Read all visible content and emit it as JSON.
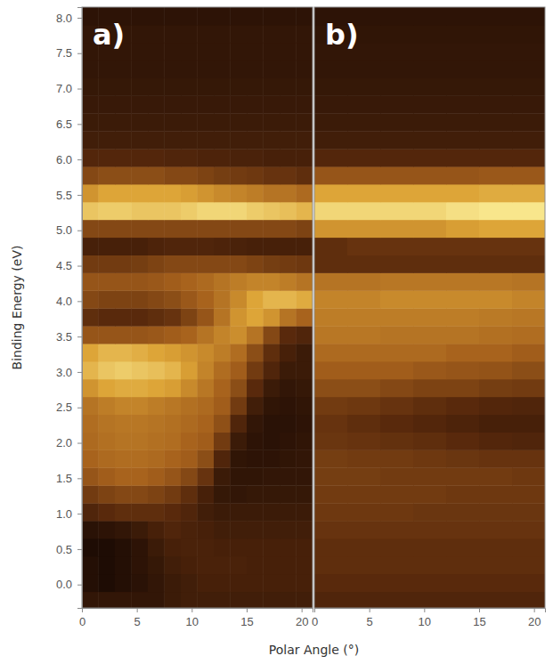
{
  "chart_data": [
    {
      "type": "heatmap",
      "title": "a)",
      "xlabel": "Polar Angle (°)",
      "ylabel": "Binding Energy (eV)",
      "xlim": [
        0,
        21
      ],
      "ylim": [
        -0.33,
        8.15
      ],
      "xticks": [
        0,
        5,
        10,
        15,
        20
      ],
      "yticks": [
        {
          "value": 0,
          "label": "0.0"
        },
        {
          "value": 0.5,
          "label": "0.5"
        },
        {
          "value": 1,
          "label": "1.0"
        },
        {
          "value": 1.5,
          "label": "1.5"
        },
        {
          "value": 2,
          "label": "2.0"
        },
        {
          "value": 2.5,
          "label": "2.5"
        },
        {
          "value": 3,
          "label": "3.0"
        },
        {
          "value": 3.5,
          "label": "3.5"
        },
        {
          "value": 4,
          "label": "4.0"
        },
        {
          "value": 4.5,
          "label": "4.5"
        },
        {
          "value": 5,
          "label": "5.0"
        },
        {
          "value": 5.5,
          "label": "5.5"
        },
        {
          "value": 6,
          "label": "6.0"
        },
        {
          "value": 6.5,
          "label": "6.5"
        },
        {
          "value": 7,
          "label": "7.0"
        },
        {
          "value": 7.5,
          "label": "7.5"
        },
        {
          "value": 8,
          "label": "8.0"
        }
      ],
      "x_edges": [
        0,
        1.5,
        3,
        4.5,
        6,
        7.5,
        9,
        10.5,
        12,
        13.5,
        15,
        16.5,
        18,
        19.5,
        21
      ],
      "y_edges": [
        -0.35,
        -0.1,
        0.15,
        0.4,
        0.65,
        0.9,
        1.15,
        1.4,
        1.65,
        1.9,
        2.15,
        2.4,
        2.65,
        2.9,
        3.15,
        3.4,
        3.65,
        3.9,
        4.15,
        4.4,
        4.65,
        4.9,
        5.15,
        5.4,
        5.65,
        5.9,
        6.15,
        6.4,
        6.65,
        6.9,
        7.15,
        7.4,
        7.65,
        7.9,
        8.15
      ],
      "z": [
        [
          1.5,
          1.5,
          1.5,
          1.5,
          1.5,
          1.8,
          2,
          2,
          2,
          2,
          2,
          2,
          2,
          2
        ],
        [
          1,
          0.8,
          1,
          1.2,
          1.5,
          1.8,
          2,
          2.2,
          2.2,
          2.2,
          2.2,
          2.2,
          2.2,
          2.2
        ],
        [
          1,
          0.8,
          1,
          1.3,
          1.6,
          2,
          2.2,
          2.3,
          2.3,
          2.3,
          2.2,
          2.2,
          2.2,
          2.2
        ],
        [
          0.8,
          0.8,
          1,
          1.3,
          1.8,
          2.2,
          2.3,
          2.3,
          2.2,
          2.2,
          2.2,
          2.2,
          2.2,
          2.2
        ],
        [
          1.2,
          1.3,
          1.5,
          1.8,
          2.2,
          2.5,
          2.3,
          2.2,
          2,
          2,
          2,
          2,
          2,
          2
        ],
        [
          2.5,
          2.8,
          3,
          3,
          3,
          2.8,
          2.5,
          2,
          1.8,
          1.8,
          1.8,
          1.8,
          1.8,
          1.8
        ],
        [
          3.5,
          3.8,
          4,
          4,
          3.8,
          3.5,
          3,
          2.2,
          1.6,
          1.5,
          1.6,
          1.6,
          1.6,
          1.6
        ],
        [
          4.5,
          4.8,
          5,
          5,
          4.8,
          4.5,
          4,
          3.2,
          1.8,
          1.4,
          1.4,
          1.5,
          1.5,
          1.5
        ],
        [
          5,
          5.2,
          5.3,
          5.3,
          5.2,
          5,
          4.8,
          4.2,
          2.5,
          1.4,
          1.3,
          1.3,
          1.4,
          1.5
        ],
        [
          5.2,
          5.4,
          5.5,
          5.5,
          5.4,
          5.3,
          5,
          4.8,
          3.5,
          1.8,
          1.3,
          1.2,
          1.3,
          1.4
        ],
        [
          5.3,
          5.5,
          5.6,
          5.6,
          5.5,
          5.4,
          5.2,
          5,
          4.3,
          2.5,
          1.5,
          1.2,
          1.2,
          1.3
        ],
        [
          5.5,
          5.8,
          6,
          6,
          5.8,
          5.6,
          5.4,
          5.2,
          4.8,
          3.5,
          2,
          1.4,
          1.3,
          1.4
        ],
        [
          6.5,
          7,
          7.2,
          7.2,
          7,
          6.8,
          6.2,
          5.6,
          5,
          4.2,
          2.8,
          1.8,
          1.5,
          1.6
        ],
        [
          7.5,
          8,
          8.2,
          8,
          7.8,
          7.5,
          6.8,
          6,
          5.3,
          4.8,
          3.5,
          2.5,
          1.8,
          1.8
        ],
        [
          7,
          7.5,
          7.5,
          7.3,
          7,
          6.8,
          6.5,
          6.2,
          5.8,
          5.3,
          4.2,
          3,
          2.2,
          1.8
        ],
        [
          4.5,
          4.5,
          4.5,
          4.5,
          4.6,
          4.8,
          5,
          5.5,
          6,
          6.3,
          5.5,
          4,
          2.8,
          2.5
        ],
        [
          3,
          2.8,
          2.8,
          2.8,
          3,
          3.2,
          3.8,
          4.5,
          5.5,
          6.5,
          7,
          6.5,
          5.5,
          5
        ],
        [
          4,
          3.8,
          3.8,
          3.8,
          4,
          4.2,
          4.6,
          5,
          5.5,
          6.2,
          7,
          7.5,
          7.5,
          7.2
        ],
        [
          4.5,
          4.5,
          4.5,
          4.5,
          4.6,
          4.8,
          5,
          5.2,
          5.5,
          5.8,
          6,
          6,
          5.8,
          5.5
        ],
        [
          3.5,
          3.5,
          3.5,
          3.6,
          3.8,
          4,
          4,
          4,
          4,
          4,
          3.8,
          3.6,
          3.5,
          3.4
        ],
        [
          2.2,
          2.2,
          2.2,
          2.2,
          2.4,
          2.5,
          2.5,
          2.5,
          2.4,
          2.3,
          2.2,
          2.2,
          2.2,
          2.2
        ],
        [
          4,
          4,
          4,
          4,
          4,
          4,
          4,
          4,
          4,
          4,
          4,
          4,
          4,
          3.8
        ],
        [
          8,
          8.2,
          8.2,
          8,
          8,
          8,
          8.2,
          8.5,
          8.5,
          8.5,
          8.2,
          8,
          7.8,
          7.5
        ],
        [
          6.5,
          7,
          7,
          7,
          7,
          7,
          6.8,
          6.5,
          6.2,
          6,
          5.8,
          5.5,
          5.5,
          5.2
        ],
        [
          4,
          4.2,
          4.2,
          4.2,
          4.2,
          4,
          4,
          3.8,
          3.6,
          3.5,
          3.4,
          3.2,
          3.2,
          3
        ],
        [
          2.6,
          2.6,
          2.6,
          2.6,
          2.6,
          2.5,
          2.5,
          2.4,
          2.4,
          2.3,
          2.3,
          2.2,
          2.2,
          2.2
        ],
        [
          2,
          2,
          2,
          2,
          2,
          2,
          2,
          2,
          2,
          2,
          2,
          2,
          2,
          2
        ],
        [
          1.8,
          1.8,
          1.8,
          1.8,
          1.8,
          1.8,
          1.8,
          1.8,
          1.8,
          1.8,
          1.8,
          1.8,
          1.8,
          1.8
        ],
        [
          1.7,
          1.7,
          1.7,
          1.7,
          1.7,
          1.7,
          1.7,
          1.7,
          1.7,
          1.7,
          1.7,
          1.7,
          1.7,
          1.7
        ],
        [
          1.6,
          1.6,
          1.6,
          1.6,
          1.6,
          1.6,
          1.6,
          1.6,
          1.6,
          1.6,
          1.6,
          1.6,
          1.6,
          1.6
        ],
        [
          1.5,
          1.5,
          1.5,
          1.5,
          1.5,
          1.5,
          1.5,
          1.5,
          1.5,
          1.5,
          1.5,
          1.5,
          1.5,
          1.5
        ],
        [
          1.5,
          1.5,
          1.5,
          1.5,
          1.5,
          1.5,
          1.5,
          1.5,
          1.5,
          1.5,
          1.5,
          1.5,
          1.5,
          1.5
        ],
        [
          1.5,
          1.5,
          1.5,
          1.5,
          1.5,
          1.5,
          1.5,
          1.5,
          1.5,
          1.5,
          1.5,
          1.5,
          1.5,
          1.5
        ],
        [
          1.3,
          1.3,
          1.3,
          1.3,
          1.3,
          1.3,
          1.3,
          1.3,
          1.3,
          1.3,
          1.3,
          1.3,
          1.3,
          1.3
        ]
      ]
    },
    {
      "type": "heatmap",
      "title": "b)",
      "tick_labels": "x",
      "xlim": [
        0,
        21
      ],
      "ylim": [
        -0.33,
        8.15
      ],
      "xticks": [
        0,
        5,
        10,
        15,
        20
      ],
      "x_edges": [
        0,
        3,
        6,
        9,
        12,
        15,
        18,
        21
      ],
      "y_edges": [
        -0.35,
        -0.1,
        0.15,
        0.4,
        0.65,
        0.9,
        1.15,
        1.4,
        1.65,
        1.9,
        2.15,
        2.4,
        2.65,
        2.9,
        3.15,
        3.4,
        3.65,
        3.9,
        4.15,
        4.4,
        4.65,
        4.9,
        5.15,
        5.4,
        5.65,
        5.9,
        6.15,
        6.4,
        6.65,
        6.9,
        7.15,
        7.4,
        7.65,
        7.9,
        8.15
      ],
      "z": [
        [
          2.5,
          2.5,
          2.5,
          2.5,
          2.5,
          2.5,
          2.5
        ],
        [
          2.8,
          2.8,
          2.8,
          2.8,
          2.8,
          2.8,
          2.8
        ],
        [
          3,
          3,
          3,
          3,
          3,
          3,
          3
        ],
        [
          3,
          3,
          3,
          3,
          3,
          3,
          3
        ],
        [
          3.2,
          3.2,
          3.2,
          3.2,
          3.2,
          3.2,
          3.2
        ],
        [
          3.4,
          3.4,
          3.4,
          3.3,
          3.3,
          3.3,
          3.3
        ],
        [
          3.5,
          3.5,
          3.5,
          3.5,
          3.4,
          3.4,
          3.4
        ],
        [
          3.6,
          3.6,
          3.5,
          3.5,
          3.5,
          3.5,
          3.4
        ],
        [
          3.6,
          3.5,
          3.5,
          3.4,
          3.3,
          3.2,
          3.2
        ],
        [
          3.3,
          3.2,
          3.1,
          3,
          2.8,
          2.6,
          2.5
        ],
        [
          3.2,
          3,
          2.8,
          2.6,
          2.4,
          2.2,
          2.2
        ],
        [
          3.5,
          3.4,
          3.2,
          3,
          2.8,
          2.6,
          2.5
        ],
        [
          4.2,
          4.2,
          4,
          3.8,
          3.8,
          3.6,
          3.5
        ],
        [
          4.8,
          4.8,
          4.8,
          4.6,
          4.5,
          4.4,
          4.2
        ],
        [
          5.2,
          5.2,
          5.2,
          5.2,
          5,
          5,
          4.8
        ],
        [
          5.6,
          5.6,
          5.5,
          5.5,
          5.5,
          5.4,
          5.3
        ],
        [
          5.8,
          5.8,
          5.8,
          5.8,
          5.8,
          5.7,
          5.6
        ],
        [
          6,
          6,
          6.2,
          6.2,
          6.2,
          6.2,
          6
        ],
        [
          5.5,
          5.5,
          5.6,
          5.6,
          5.6,
          5.6,
          5.5
        ],
        [
          3,
          3,
          3,
          3,
          3,
          3,
          3
        ],
        [
          3,
          3.2,
          3.2,
          3.2,
          3.2,
          3.2,
          3.2
        ],
        [
          6.5,
          6.5,
          6.5,
          6.5,
          6.8,
          7,
          7
        ],
        [
          8.5,
          8.5,
          8.5,
          8.5,
          8.8,
          9,
          9
        ],
        [
          7,
          7,
          7,
          7,
          7,
          7.2,
          7.2
        ],
        [
          4.5,
          4.5,
          4.5,
          4.5,
          4.5,
          4.6,
          4.6
        ],
        [
          2.6,
          2.6,
          2.6,
          2.6,
          2.6,
          2.6,
          2.6
        ],
        [
          2,
          2,
          2,
          2,
          2,
          2,
          2
        ],
        [
          1.8,
          1.8,
          1.8,
          1.8,
          1.8,
          1.8,
          1.8
        ],
        [
          1.7,
          1.7,
          1.7,
          1.7,
          1.7,
          1.7,
          1.7
        ],
        [
          1.6,
          1.6,
          1.6,
          1.6,
          1.6,
          1.6,
          1.6
        ],
        [
          1.5,
          1.5,
          1.5,
          1.5,
          1.5,
          1.5,
          1.5
        ],
        [
          1.5,
          1.5,
          1.5,
          1.5,
          1.5,
          1.5,
          1.5
        ],
        [
          1.4,
          1.4,
          1.4,
          1.4,
          1.4,
          1.4,
          1.4
        ],
        [
          1.3,
          1.3,
          1.3,
          1.3,
          1.3,
          1.3,
          1.3
        ]
      ]
    }
  ]
}
